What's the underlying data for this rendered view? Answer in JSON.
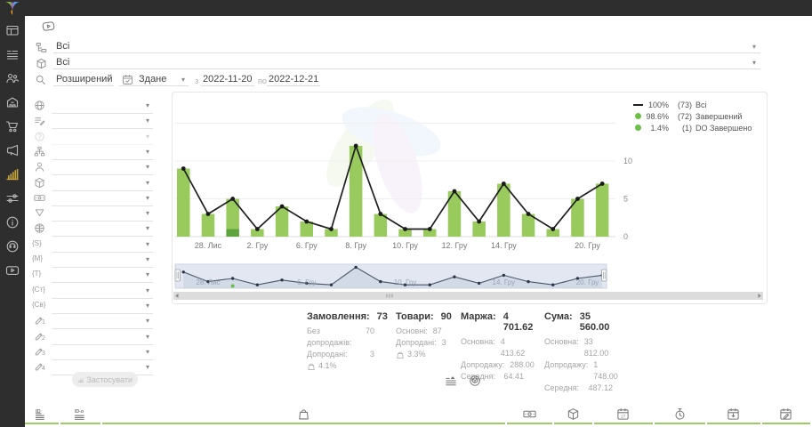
{
  "sidebar": {
    "items": [
      {
        "icon": "dashboard-icon"
      },
      {
        "icon": "orders-list-icon"
      },
      {
        "icon": "customers-icon"
      },
      {
        "icon": "warehouse-icon"
      },
      {
        "icon": "cart-icon"
      },
      {
        "icon": "marketing-icon"
      },
      {
        "icon": "analytics-icon",
        "active": true
      },
      {
        "icon": "settings-sliders-icon"
      },
      {
        "icon": "info-icon"
      },
      {
        "icon": "support-icon"
      },
      {
        "icon": "video-icon"
      }
    ]
  },
  "filters_top": {
    "group1_value": "Всі",
    "group2_value": "Всі",
    "search_mode": "Розширений",
    "date_field": "Здане",
    "from_label": "з",
    "date_from": "2022-11-20",
    "to_label": "по",
    "date_to": "2022-12-21"
  },
  "filter_panel": {
    "apply_label": "Застосувати",
    "rows": [
      {
        "icon": "globe-icon"
      },
      {
        "icon": "category-edit-icon"
      },
      {
        "icon": "help-icon",
        "disabled": true
      },
      {
        "icon": "sitemap-icon"
      },
      {
        "icon": "person-icon"
      },
      {
        "icon": "package-icon"
      },
      {
        "icon": "payment-icon"
      },
      {
        "icon": "funnel-icon"
      },
      {
        "icon": "website-icon"
      },
      {
        "icon": "var-s-icon",
        "glyph": "{S}"
      },
      {
        "icon": "var-m-icon",
        "glyph": "{M}"
      },
      {
        "icon": "var-t-icon",
        "glyph": "{T}"
      },
      {
        "icon": "var-st-icon",
        "glyph": "{Ст}"
      },
      {
        "icon": "var-sv-icon",
        "glyph": "{Св}"
      },
      {
        "icon": "custom-field-icon",
        "sub": "1"
      },
      {
        "icon": "custom-field-icon",
        "sub": "2"
      },
      {
        "icon": "custom-field-icon",
        "sub": "3"
      },
      {
        "icon": "custom-field-icon",
        "sub": "4"
      }
    ]
  },
  "chart_data": {
    "type": "bar",
    "title": "",
    "x": [
      "28. Лис",
      "",
      "",
      "2. Гру",
      "",
      "6. Гру",
      "",
      "8. Гру",
      "",
      "10. Гру",
      "",
      "12. Гру",
      "",
      "14. Гру",
      "",
      "",
      "",
      "20. Гру"
    ],
    "series": [
      {
        "name": "Всі",
        "type": "line",
        "color": "#1f1f1f",
        "values": [
          9,
          3,
          5,
          1,
          4,
          2,
          1,
          12,
          3,
          1,
          1,
          6,
          2,
          7,
          3,
          1,
          5,
          7
        ]
      },
      {
        "name": "Завершений",
        "type": "bar",
        "color": "#98ca5e",
        "values": [
          9,
          3,
          4,
          1,
          4,
          2,
          1,
          12,
          3,
          1,
          1,
          6,
          2,
          7,
          3,
          1,
          5,
          7
        ]
      },
      {
        "name": "DO Завершено",
        "type": "bar",
        "color": "#5fa33c",
        "values": [
          0,
          0,
          1,
          0,
          0,
          0,
          0,
          0,
          0,
          0,
          0,
          0,
          0,
          0,
          0,
          0,
          0,
          0
        ]
      }
    ],
    "x_tick_labels": [
      {
        "label": "28. Лис",
        "index": 1
      },
      {
        "label": "2. Гру",
        "index": 3
      },
      {
        "label": "6. Гру",
        "index": 5
      },
      {
        "label": "8. Гру",
        "index": 7
      },
      {
        "label": "10. Гру",
        "index": 9
      },
      {
        "label": "12. Гру",
        "index": 11
      },
      {
        "label": "14. Гру",
        "index": 13
      },
      {
        "label": "20. Гру",
        "index": 16.4
      }
    ],
    "navigator_tick_labels": [
      {
        "label": "28. Лис",
        "index": 1
      },
      {
        "label": "6. Гру",
        "index": 5
      },
      {
        "label": "10. Гру",
        "index": 9
      },
      {
        "label": "14. Гру",
        "index": 13
      },
      {
        "label": "20. Гру",
        "index": 16.4
      }
    ],
    "y_ticks": [
      0,
      5,
      10
    ],
    "ylim": [
      0,
      15
    ],
    "grid": true,
    "legend_position": "top-right",
    "legend": [
      {
        "swatch": "line",
        "color": "#1f1f1f",
        "percent": "100%",
        "count": "(73)",
        "label": "Всі"
      },
      {
        "swatch": "dot",
        "color": "#6abf47",
        "percent": "98.6%",
        "count": "(72)",
        "label": "Завершений"
      },
      {
        "swatch": "dot",
        "color": "#6abf47",
        "percent": "1.4%",
        "count": "(1)",
        "label": "DO Завершено"
      }
    ]
  },
  "stats": {
    "columns": [
      {
        "title": "Замовлення:",
        "value": "73",
        "rows": [
          {
            "label": "Без допродажів:",
            "value": "70"
          },
          {
            "label": "Допродані:",
            "value": "3"
          }
        ],
        "badge": "4.1%"
      },
      {
        "title": "Товари:",
        "value": "90",
        "rows": [
          {
            "label": "Основні:",
            "value": "87"
          },
          {
            "label": "Допродані:",
            "value": "3"
          }
        ],
        "badge": "3.3%"
      },
      {
        "title": "Маржа:",
        "value": "4 701.62",
        "rows": [
          {
            "label": "Основна:",
            "value": "4 413.62"
          },
          {
            "label": "Допродажу:",
            "value": "288.00"
          },
          {
            "label": "Середня:",
            "value": "64.41"
          }
        ]
      },
      {
        "title": "Сума:",
        "value": "35 560.00",
        "rows": [
          {
            "label": "Основна:",
            "value": "33 812.00"
          },
          {
            "label": "Допродажу:",
            "value": "1 748.00"
          },
          {
            "label": "Середня:",
            "value": "487.12"
          }
        ]
      }
    ]
  },
  "view_toggles": [
    {
      "icon": "list-view-icon"
    },
    {
      "icon": "product-view-icon"
    }
  ],
  "footer": {
    "columns": [
      {
        "icon": "id-primary-icon"
      },
      {
        "icon": "id-external-icon"
      },
      {
        "icon": "bag-icon"
      },
      {
        "icon": "payment-icon"
      },
      {
        "icon": "package-icon"
      },
      {
        "icon": "calendar-date-icon"
      },
      {
        "icon": "stopwatch-icon"
      },
      {
        "icon": "calendar-import-icon"
      },
      {
        "icon": "calendar-edit-icon"
      }
    ]
  },
  "colors": {
    "accent_green": "#9ccc65",
    "bar_green": "#98ca5e",
    "bar_dark_green": "#5fa33c",
    "line_black": "#1f1f1f",
    "sidebar_bg": "#2e2e2e",
    "active_icon_gold": "#c9a63c"
  }
}
